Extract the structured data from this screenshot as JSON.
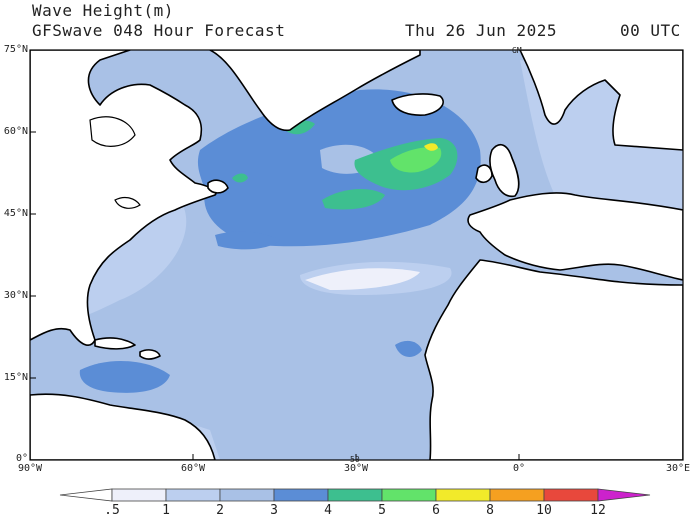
{
  "header": {
    "title": "Wave Height(m)",
    "subtitle": "GFSwave 048 Hour Forecast",
    "date": "Thu 26 Jun 2025",
    "time": "00 UTC"
  },
  "map": {
    "lat_labels": [
      "75°N",
      "60°N",
      "45°N",
      "30°N",
      "15°N",
      "0°"
    ],
    "lon_labels": [
      "90°W",
      "60°W",
      "30°W",
      "0°",
      "30°E"
    ],
    "gm_label": "GM",
    "marker_label": "50",
    "region": "North Atlantic"
  },
  "colorbar": {
    "labels": [
      ".5",
      "1",
      "2",
      "3",
      "4",
      "5",
      "6",
      "8",
      "10",
      "12"
    ],
    "colors": [
      "#eef0fa",
      "#bccfef",
      "#a9c1e6",
      "#5b8dd6",
      "#3dbf8f",
      "#62e36a",
      "#f2ea2a",
      "#f5a020",
      "#e8483c",
      "#c40010",
      "#cc22cc"
    ]
  }
}
